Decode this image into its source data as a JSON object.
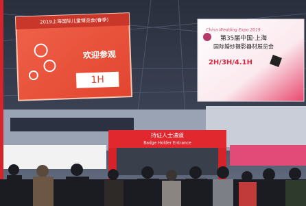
{
  "left_banner": {
    "top_line": "2019上海国际儿童博览会(春季)",
    "welcome": "欢迎参观",
    "hall": "1H"
  },
  "right_banner": {
    "brand": "China Wedding Expo 2019",
    "line1": "第35届中国·上海",
    "line2": "国际婚纱摄影器材展览会",
    "halls": "2H/3H/4.1H"
  },
  "gate": {
    "title": "持证人士通道",
    "subtitle": "Badge Holder Entrance"
  }
}
